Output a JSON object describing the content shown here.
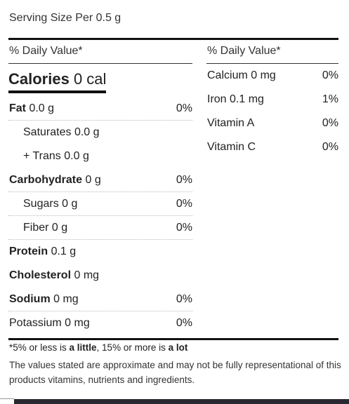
{
  "serving_size": "Serving Size Per 0.5 g",
  "daily_value_header": "% Daily Value*",
  "calories": {
    "label": "Calories",
    "value": "0 cal"
  },
  "left_rows": [
    {
      "label": "Fat",
      "value": "0.0 g",
      "pct": "0%",
      "bold": true,
      "indent": false
    },
    {
      "label": "Saturates",
      "value": "0.0 g",
      "pct": "",
      "bold": false,
      "indent": true
    },
    {
      "label": "+ Trans",
      "value": "0.0 g",
      "pct": "",
      "bold": false,
      "indent": true
    },
    {
      "label": "Carbohydrate",
      "value": "0 g",
      "pct": "0%",
      "bold": true,
      "indent": false
    },
    {
      "label": "Sugars",
      "value": "0 g",
      "pct": "0%",
      "bold": false,
      "indent": true
    },
    {
      "label": "Fiber",
      "value": "0 g",
      "pct": "0%",
      "bold": false,
      "indent": true
    },
    {
      "label": "Protein",
      "value": "0.1 g",
      "pct": "",
      "bold": true,
      "indent": false
    },
    {
      "label": "Cholesterol",
      "value": "0 mg",
      "pct": "",
      "bold": true,
      "indent": false
    },
    {
      "label": "Sodium",
      "value": "0 mg",
      "pct": "0%",
      "bold": true,
      "indent": false
    },
    {
      "label": "Potassium",
      "value": "0 mg",
      "pct": "0%",
      "bold": false,
      "indent": false
    }
  ],
  "right_rows": [
    {
      "label": "Calcium",
      "value": "0 mg",
      "pct": "0%"
    },
    {
      "label": "Iron",
      "value": "0.1 mg",
      "pct": "1%"
    },
    {
      "label": "Vitamin A",
      "value": "",
      "pct": "0%"
    },
    {
      "label": "Vitamin C",
      "value": "",
      "pct": "0%"
    }
  ],
  "footnote": {
    "prefix": "*5% or less is ",
    "little": "a little",
    "middle": ", 15% or more is ",
    "lot": "a lot"
  },
  "disclaimer": "The values stated are approximate and may not be fully representational of this products vitamins, nutrients and ingredients."
}
